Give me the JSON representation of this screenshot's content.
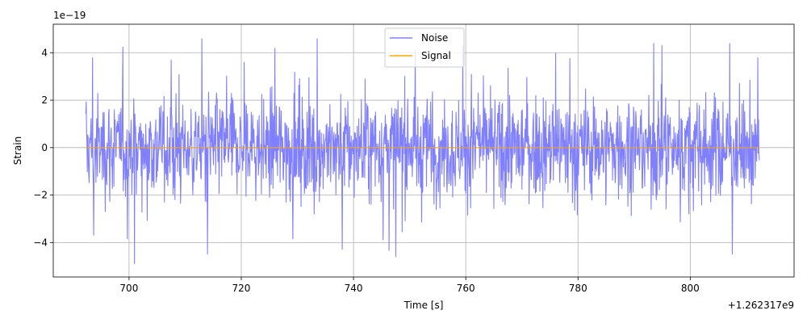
{
  "chart_data": {
    "type": "line",
    "title": "",
    "xlabel": "Time [s]",
    "ylabel": "Strain",
    "x_offset_label": "+1.262317e9",
    "y_scale_label": "1e−19",
    "xlim": [
      686.5,
      818.5
    ],
    "ylim": [
      -5.45,
      5.2
    ],
    "x_ticks": [
      700,
      720,
      740,
      760,
      780,
      800
    ],
    "x_tick_labels": [
      "700",
      "720",
      "740",
      "760",
      "780",
      "800"
    ],
    "y_ticks": [
      -4,
      -2,
      0,
      2,
      4
    ],
    "y_tick_labels": [
      "−4",
      "−2",
      "0",
      "2",
      "4"
    ],
    "grid": true,
    "legend_position": "top-center",
    "series": [
      {
        "name": "Noise",
        "color": "#8080ff",
        "x_range": [
          692.3,
          812.3
        ],
        "sample_count": 1800,
        "amplitude_typical": 1.3,
        "amplitude_peak": 4.9,
        "peaks": [
          {
            "x": 693.5,
            "y": 3.8
          },
          {
            "x": 693.7,
            "y": -3.7
          },
          {
            "x": 701.0,
            "y": -4.9
          },
          {
            "x": 707.5,
            "y": 3.7
          },
          {
            "x": 713.0,
            "y": 4.6
          },
          {
            "x": 714.0,
            "y": -4.5
          },
          {
            "x": 726.0,
            "y": 4.2
          },
          {
            "x": 733.5,
            "y": 4.6
          },
          {
            "x": 738.0,
            "y": -4.3
          },
          {
            "x": 747.5,
            "y": -4.6
          },
          {
            "x": 751.0,
            "y": 4.1
          },
          {
            "x": 759.5,
            "y": 4.3
          },
          {
            "x": 776.0,
            "y": 4.0
          },
          {
            "x": 793.5,
            "y": 4.4
          },
          {
            "x": 807.0,
            "y": 4.4
          },
          {
            "x": 807.5,
            "y": -4.5
          },
          {
            "x": 812.0,
            "y": 3.8
          }
        ]
      },
      {
        "name": "Signal",
        "color": "#ffa500",
        "x": [
          692.3,
          812.3
        ],
        "y": [
          0,
          0
        ]
      }
    ]
  }
}
